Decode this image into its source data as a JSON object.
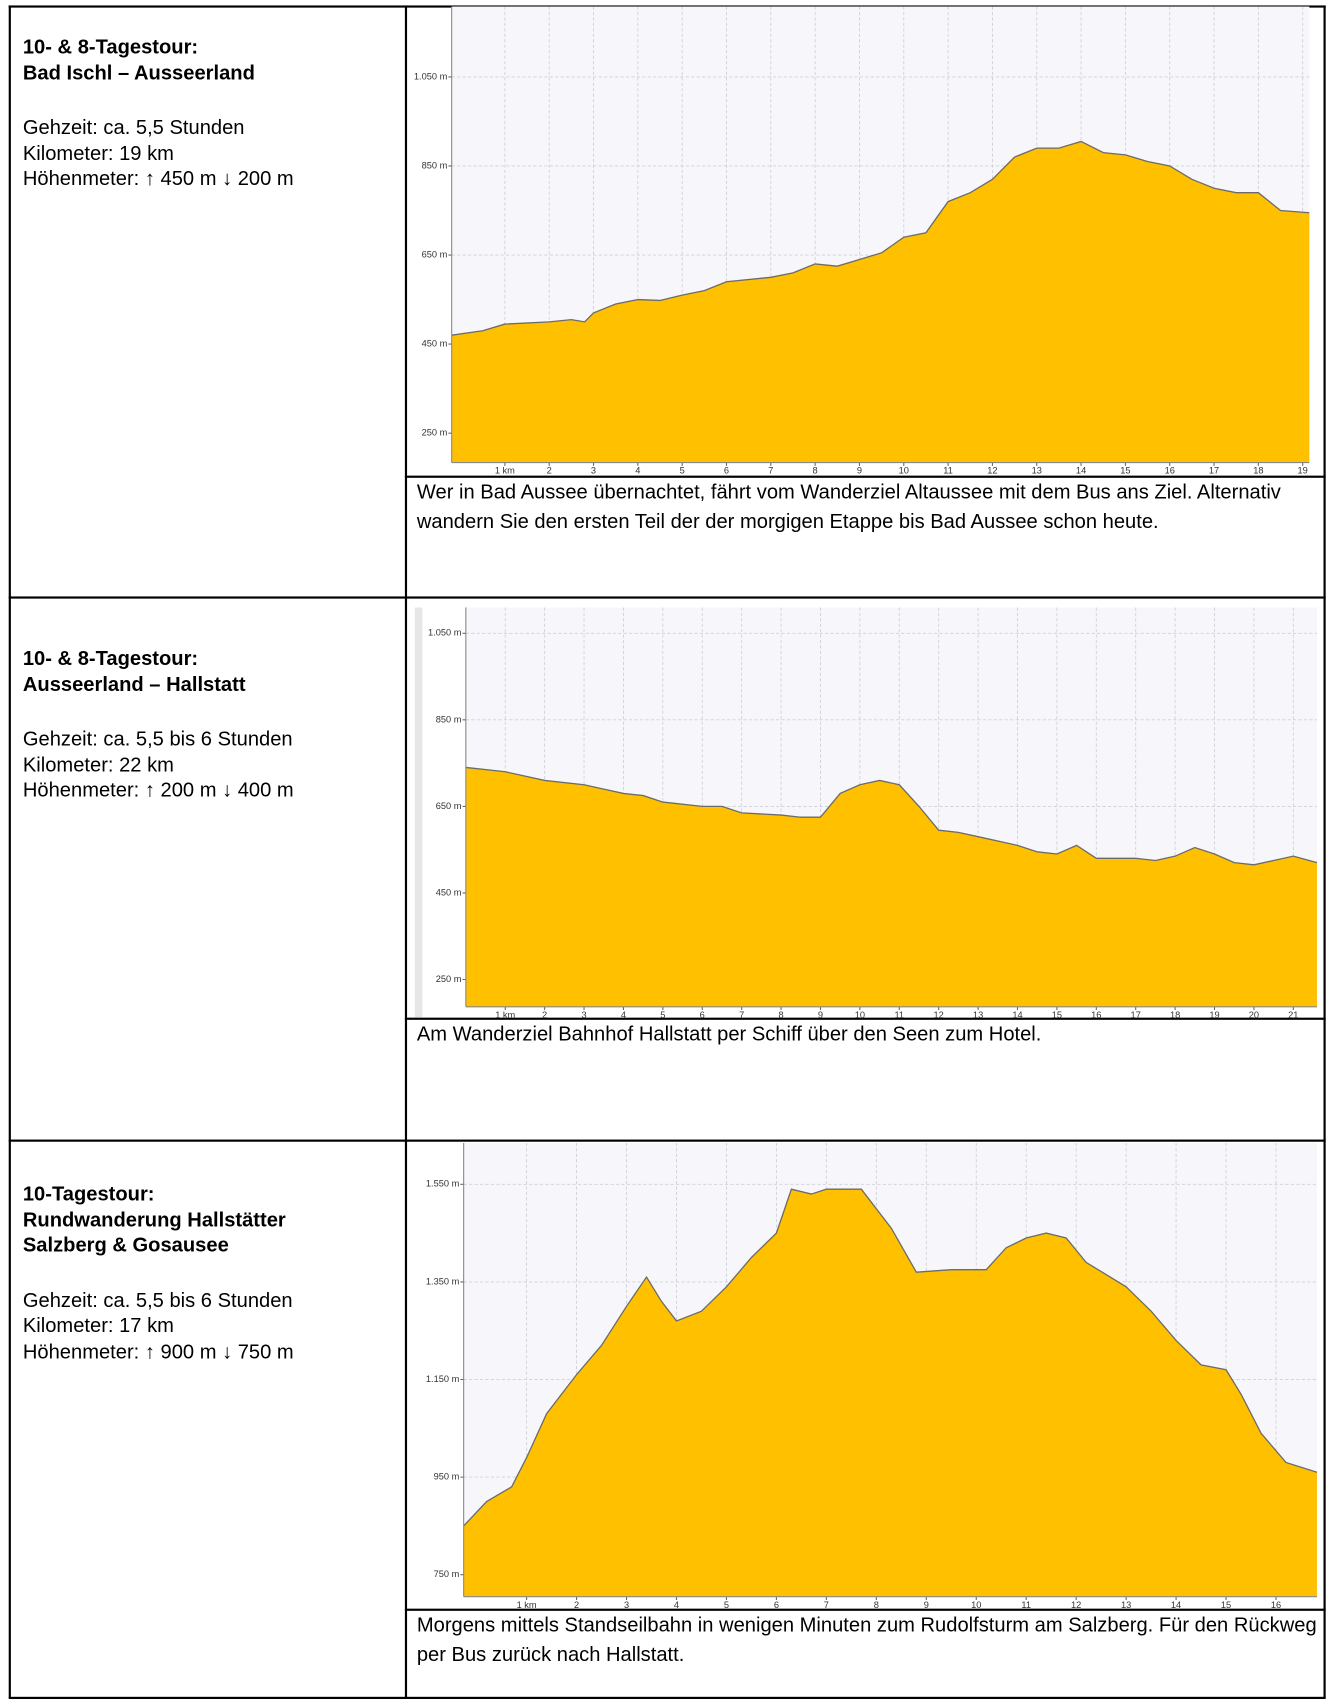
{
  "rows": [
    {
      "title": [
        "10- & 8-Tagestour:",
        "Bad Ischl – Ausseerland"
      ],
      "details": [
        "Gehzeit: ca. 5,5 Stunden",
        "Kilometer: 19 km",
        "Höhenmeter: ↑ 450 m ↓ 200 m"
      ],
      "caption": "Wer in Bad Aussee übernachtet, fährt vom Wanderziel Altaussee mit dem Bus ans Ziel. Alternativ wandern Sie den ersten Teil der der morgigen Etappe bis Bad Aussee schon heute."
    },
    {
      "title": [
        "10- & 8-Tagestour:",
        "Ausseerland – Hallstatt"
      ],
      "details": [
        "Gehzeit: ca. 5,5 bis 6 Stunden",
        "Kilometer: 22 km",
        "Höhenmeter: ↑ 200 m ↓ 400 m"
      ],
      "caption": "Am Wanderziel Bahnhof Hallstatt per Schiff über den Seen zum Hotel."
    },
    {
      "title": [
        "10-Tagestour:",
        "Rundwanderung Hallstätter",
        "Salzberg & Gosausee"
      ],
      "details": [
        "Gehzeit: ca. 5,5 bis 6 Stunden",
        "Kilometer: 17 km",
        "Höhenmeter: ↑ 900 m ↓ 750 m"
      ],
      "caption": "Morgens mittels Standseilbahn in wenigen Minuten zum Rudolfsturm am Salzberg. Für den Rückweg per Bus zurück nach Hallstatt."
    }
  ],
  "chart_data": [
    {
      "type": "area",
      "color": "#ffc000",
      "grid": true,
      "x": [
        -0.2,
        0.5,
        1,
        2,
        2.5,
        2.8,
        3,
        3.5,
        4,
        4.5,
        5,
        5.5,
        6,
        7,
        7.5,
        8,
        8.5,
        9,
        9.5,
        10,
        10.5,
        11,
        11.5,
        12,
        12.5,
        13,
        13.5,
        14,
        14.5,
        15,
        15.5,
        16,
        16.5,
        17,
        17.5,
        18,
        18.5,
        19.15
      ],
      "values": [
        470,
        480,
        495,
        500,
        505,
        500,
        520,
        540,
        550,
        548,
        560,
        570,
        590,
        600,
        610,
        630,
        625,
        640,
        655,
        690,
        700,
        770,
        790,
        820,
        870,
        890,
        890,
        905,
        880,
        875,
        860,
        850,
        820,
        800,
        790,
        790,
        750,
        745
      ],
      "xlim": [
        -0.2,
        19.15
      ],
      "ylim": [
        184,
        1208
      ],
      "xticks": [
        {
          "value": 1,
          "label": "1 km"
        },
        2,
        3,
        4,
        5,
        6,
        7,
        8,
        9,
        10,
        11,
        12,
        13,
        14,
        15,
        16,
        17,
        18,
        19
      ],
      "yticks": [
        {
          "value": 250,
          "label": "250 m"
        },
        {
          "value": 450,
          "label": "450 m"
        },
        {
          "value": 650,
          "label": "650 m"
        },
        {
          "value": 850,
          "label": "850 m"
        },
        {
          "value": 1050,
          "label": "1.050 m"
        }
      ]
    },
    {
      "type": "area",
      "color": "#ffc000",
      "grid": true,
      "x": [
        0,
        1,
        2,
        3,
        3.5,
        4,
        4.5,
        5,
        6,
        6.5,
        7,
        8,
        8.5,
        9,
        9.5,
        10,
        10.5,
        11,
        11.5,
        12,
        12.5,
        13,
        14,
        14.5,
        15,
        15.5,
        16,
        17,
        17.5,
        18,
        18.5,
        19,
        19.5,
        20,
        20.5,
        21,
        21.6
      ],
      "values": [
        740,
        730,
        710,
        700,
        690,
        680,
        675,
        660,
        650,
        650,
        635,
        630,
        625,
        625,
        680,
        700,
        710,
        700,
        650,
        595,
        590,
        580,
        560,
        545,
        540,
        560,
        530,
        530,
        525,
        535,
        555,
        540,
        520,
        515,
        525,
        535,
        520
      ],
      "xlim": [
        0,
        21.6
      ],
      "ylim": [
        187,
        1110
      ],
      "xticks": [
        {
          "value": 1,
          "label": "1 km"
        },
        2,
        3,
        4,
        5,
        6,
        7,
        8,
        9,
        10,
        11,
        12,
        13,
        14,
        15,
        16,
        17,
        18,
        19,
        20,
        21
      ],
      "yticks": [
        {
          "value": 250,
          "label": "250 m"
        },
        {
          "value": 450,
          "label": "450 m"
        },
        {
          "value": 650,
          "label": "650 m"
        },
        {
          "value": 850,
          "label": "850 m"
        },
        {
          "value": 1050,
          "label": "1.050 m"
        }
      ]
    },
    {
      "type": "area",
      "color": "#ffc000",
      "grid": true,
      "x": [
        -0.26,
        0.2,
        0.7,
        1,
        1.4,
        2,
        2.5,
        3,
        3.4,
        3.7,
        4,
        4.5,
        5,
        5.5,
        6,
        6.3,
        6.7,
        7,
        7.7,
        8.3,
        8.8,
        9.5,
        10.2,
        10.6,
        11,
        11.4,
        11.8,
        12.2,
        13,
        13.5,
        14,
        14.5,
        15,
        15.3,
        15.7,
        16.2,
        16.82
      ],
      "values": [
        850,
        900,
        930,
        990,
        1080,
        1160,
        1220,
        1300,
        1360,
        1310,
        1270,
        1290,
        1340,
        1400,
        1450,
        1540,
        1530,
        1540,
        1540,
        1460,
        1370,
        1375,
        1375,
        1420,
        1440,
        1450,
        1440,
        1390,
        1340,
        1290,
        1230,
        1180,
        1170,
        1120,
        1040,
        980,
        960
      ],
      "xlim": [
        -0.26,
        16.82
      ],
      "ylim": [
        705,
        1635
      ],
      "xticks": [
        {
          "value": 1,
          "label": "1 km"
        },
        2,
        3,
        4,
        5,
        6,
        7,
        8,
        9,
        10,
        11,
        12,
        13,
        14,
        15,
        16
      ],
      "yticks": [
        {
          "value": 750,
          "label": "750 m"
        },
        {
          "value": 950,
          "label": "950 m"
        },
        {
          "value": 1150,
          "label": "1.150 m"
        },
        {
          "value": 1350,
          "label": "1.350 m"
        },
        {
          "value": 1550,
          "label": "1.550 m"
        }
      ]
    }
  ]
}
